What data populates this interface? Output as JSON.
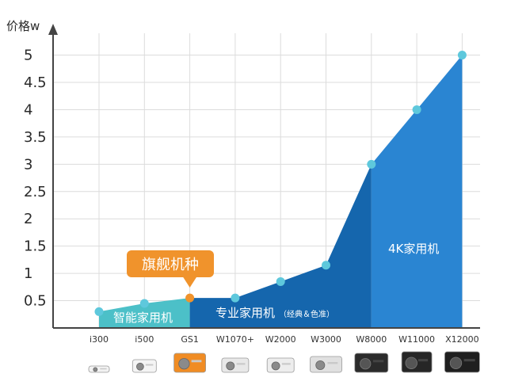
{
  "chart_data": {
    "type": "area",
    "ylabel": "价格w",
    "ylim": [
      0,
      5.4
    ],
    "yticks": [
      "0.5",
      "1",
      "1.5",
      "2",
      "2.5",
      "3",
      "3.5",
      "4",
      "4.5",
      "5"
    ],
    "ytick_values": [
      0.5,
      1,
      1.5,
      2,
      2.5,
      3,
      3.5,
      4,
      4.5,
      5
    ],
    "grid": true,
    "categories": [
      "i300",
      "i500",
      "GS1",
      "W1070+",
      "W2000",
      "W3000",
      "W8000",
      "W11000",
      "X12000"
    ],
    "values": [
      0.3,
      0.45,
      0.55,
      0.55,
      0.85,
      1.15,
      3.0,
      4.0,
      5.0
    ],
    "segments": [
      {
        "label": "智能家用机",
        "from": 0,
        "to": 2,
        "color": "#4cc0c8"
      },
      {
        "label": "专业家用机",
        "sublabel": "（经典＆色准）",
        "from": 2,
        "to": 6,
        "color": "#1566ad"
      },
      {
        "label": "4K家用机",
        "from": 6,
        "to": 8,
        "color": "#2a85d2"
      }
    ],
    "callout": {
      "label": "旗舰机种",
      "category_index": 2,
      "color": "#f0932c"
    },
    "marker_colors": {
      "default": "#5ec8dc",
      "highlight": "#f0932c"
    },
    "highlight_index": 2
  }
}
